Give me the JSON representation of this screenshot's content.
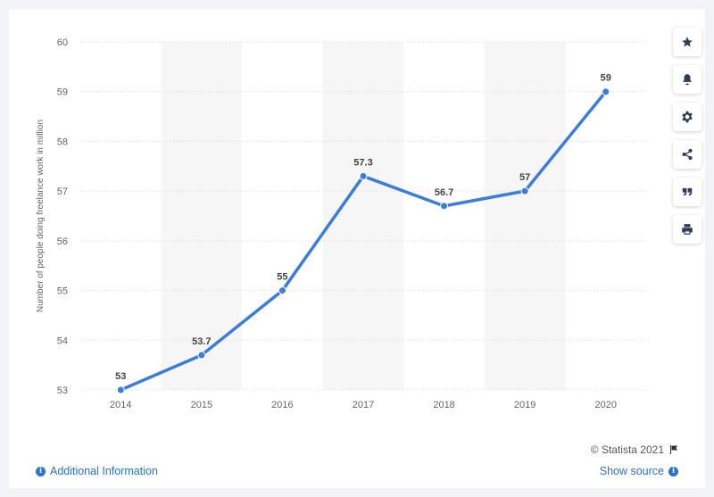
{
  "chart_data": {
    "type": "line",
    "categories": [
      "2014",
      "2015",
      "2016",
      "2017",
      "2018",
      "2019",
      "2020"
    ],
    "series": [
      {
        "values": [
          53,
          53.7,
          55,
          57.3,
          56.7,
          57,
          59
        ],
        "labels": [
          "53",
          "53.7",
          "55",
          "57.3",
          "56.7",
          "57",
          "59"
        ]
      }
    ],
    "ylabel": "Number of people doing freelance work in million",
    "ylim": [
      53,
      60
    ],
    "yticks": [
      "53",
      "54",
      "55",
      "56",
      "57",
      "58",
      "59",
      "60"
    ],
    "grid": true,
    "line_color": "#3d7dd8",
    "band_color": "#f6f6f6"
  },
  "toolbar": {
    "buttons": [
      {
        "name": "star-icon"
      },
      {
        "name": "bell-icon"
      },
      {
        "name": "gear-icon"
      },
      {
        "name": "share-icon"
      },
      {
        "name": "quote-icon"
      },
      {
        "name": "print-icon"
      }
    ]
  },
  "footer": {
    "credit": "© Statista 2021",
    "additional_info": "Additional Information",
    "show_source": "Show source"
  },
  "colors": {
    "link": "#2a73cc",
    "background": "#f1f3f6"
  }
}
